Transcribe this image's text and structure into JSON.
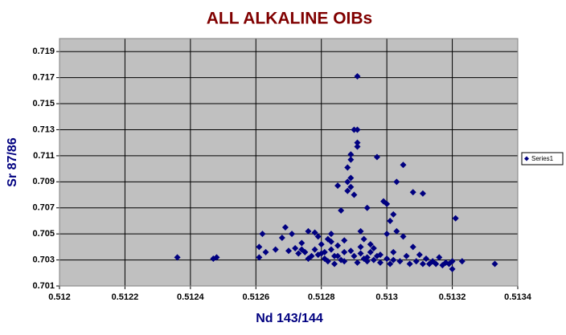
{
  "chart_data": {
    "type": "scatter",
    "title": "ALL ALKALINE  OIBs",
    "x_label": "Nd 143/144",
    "y_label": "Sr 87/86",
    "xlim": [
      0.512,
      0.5134
    ],
    "xticks": [
      0.512,
      0.5122,
      0.5124,
      0.5126,
      0.5128,
      0.513,
      0.5132,
      0.5134
    ],
    "ylim": [
      0.701,
      0.72
    ],
    "yticks": [
      0.701,
      0.703,
      0.705,
      0.707,
      0.709,
      0.711,
      0.713,
      0.715,
      0.717,
      0.719
    ],
    "grid": true,
    "legend": "right",
    "series": [
      {
        "name": "Series1",
        "color": "#000080",
        "x": [
          0.51236,
          0.51247,
          0.51248,
          0.51261,
          0.51261,
          0.51262,
          0.51266,
          0.51268,
          0.51269,
          0.51271,
          0.51272,
          0.51274,
          0.51275,
          0.51276,
          0.51277,
          0.51278,
          0.51279,
          0.5128,
          0.5128,
          0.51281,
          0.51282,
          0.51282,
          0.51283,
          0.51283,
          0.51284,
          0.51284,
          0.51285,
          0.51285,
          0.51286,
          0.51286,
          0.51287,
          0.51287,
          0.51288,
          0.51288,
          0.51288,
          0.51289,
          0.51289,
          0.51289,
          0.51289,
          0.5129,
          0.5129,
          0.51291,
          0.51291,
          0.51291,
          0.51291,
          0.5129,
          0.51291,
          0.51292,
          0.51292,
          0.51293,
          0.51293,
          0.51294,
          0.51294,
          0.51295,
          0.51295,
          0.51296,
          0.51297,
          0.51297,
          0.51298,
          0.51299,
          0.513,
          0.513,
          0.513,
          0.51301,
          0.51301,
          0.51302,
          0.51302,
          0.51303,
          0.51303,
          0.51304,
          0.51305,
          0.51305,
          0.51306,
          0.51307,
          0.51308,
          0.51308,
          0.51309,
          0.5131,
          0.51311,
          0.51311,
          0.51312,
          0.51313,
          0.51314,
          0.51315,
          0.51316,
          0.51317,
          0.51318,
          0.51319,
          0.5132,
          0.5132,
          0.51321,
          0.51323,
          0.51333,
          0.51274,
          0.51276,
          0.51279,
          0.51283,
          0.51287,
          0.51292,
          0.51296,
          0.51263,
          0.5127,
          0.51273,
          0.51278,
          0.51281,
          0.51285,
          0.51289,
          0.51294,
          0.51298,
          0.51302
        ],
        "values": [
          0.7032,
          0.7031,
          0.7032,
          0.704,
          0.7032,
          0.705,
          0.7038,
          0.7047,
          0.7055,
          0.705,
          0.7039,
          0.7038,
          0.7036,
          0.7052,
          0.7033,
          0.7051,
          0.7048,
          0.7035,
          0.7042,
          0.7031,
          0.7046,
          0.7029,
          0.7038,
          0.705,
          0.7033,
          0.7027,
          0.7041,
          0.7087,
          0.703,
          0.7068,
          0.7036,
          0.7045,
          0.7101,
          0.709,
          0.7083,
          0.7111,
          0.7107,
          0.7093,
          0.7086,
          0.708,
          0.713,
          0.713,
          0.7171,
          0.712,
          0.7117,
          0.7033,
          0.7028,
          0.704,
          0.7052,
          0.7031,
          0.7046,
          0.707,
          0.7029,
          0.7036,
          0.7042,
          0.703,
          0.7109,
          0.7033,
          0.7028,
          0.7075,
          0.7073,
          0.705,
          0.7031,
          0.706,
          0.7027,
          0.7065,
          0.7036,
          0.709,
          0.7052,
          0.7029,
          0.7103,
          0.7048,
          0.7033,
          0.7027,
          0.7082,
          0.704,
          0.7029,
          0.7034,
          0.7081,
          0.7027,
          0.7031,
          0.7027,
          0.7029,
          0.7027,
          0.7032,
          0.7026,
          0.7028,
          0.7027,
          0.7023,
          0.7029,
          0.7062,
          0.7029,
          0.7027,
          0.7043,
          0.7031,
          0.7034,
          0.7044,
          0.7029,
          0.7035,
          0.7039,
          0.7036,
          0.7037,
          0.7035,
          0.7038,
          0.7036,
          0.7033,
          0.7037,
          0.7032,
          0.7034,
          0.703
        ]
      }
    ]
  }
}
